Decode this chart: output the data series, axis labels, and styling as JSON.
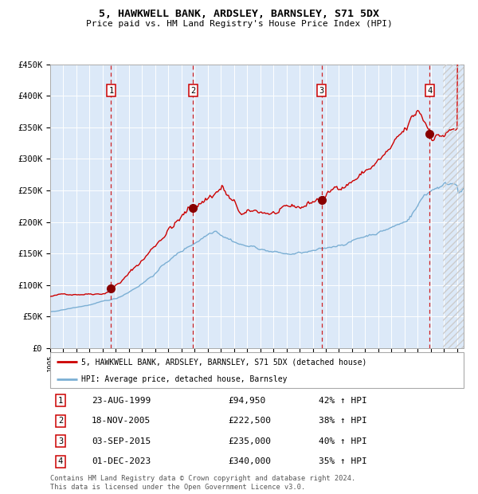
{
  "title": "5, HAWKWELL BANK, ARDSLEY, BARNSLEY, S71 5DX",
  "subtitle": "Price paid vs. HM Land Registry's House Price Index (HPI)",
  "ylim": [
    0,
    450000
  ],
  "yticks": [
    0,
    50000,
    100000,
    150000,
    200000,
    250000,
    300000,
    350000,
    400000,
    450000
  ],
  "ytick_labels": [
    "£0",
    "£50K",
    "£100K",
    "£150K",
    "£200K",
    "£250K",
    "£300K",
    "£350K",
    "£400K",
    "£450K"
  ],
  "xlim_start": 1995.0,
  "xlim_end": 2026.5,
  "plot_bg_color": "#dce9f8",
  "grid_color": "#ffffff",
  "red_line_color": "#cc0000",
  "blue_line_color": "#7bafd4",
  "sale_marker_color": "#880000",
  "dashed_line_color": "#cc0000",
  "purchases": [
    {
      "num": 1,
      "date_label": "23-AUG-1999",
      "date_x": 1999.64,
      "price": 94950,
      "pct": "42%",
      "label": "1"
    },
    {
      "num": 2,
      "date_label": "18-NOV-2005",
      "date_x": 2005.88,
      "price": 222500,
      "pct": "38%",
      "label": "2"
    },
    {
      "num": 3,
      "date_label": "03-SEP-2015",
      "date_x": 2015.67,
      "price": 235000,
      "pct": "40%",
      "label": "3"
    },
    {
      "num": 4,
      "date_label": "01-DEC-2023",
      "date_x": 2023.92,
      "price": 340000,
      "pct": "35%",
      "label": "4"
    }
  ],
  "legend_line1": "5, HAWKWELL BANK, ARDSLEY, BARNSLEY, S71 5DX (detached house)",
  "legend_line2": "HPI: Average price, detached house, Barnsley",
  "footnote": "Contains HM Land Registry data © Crown copyright and database right 2024.\nThis data is licensed under the Open Government Licence v3.0.",
  "future_start": 2024.92
}
